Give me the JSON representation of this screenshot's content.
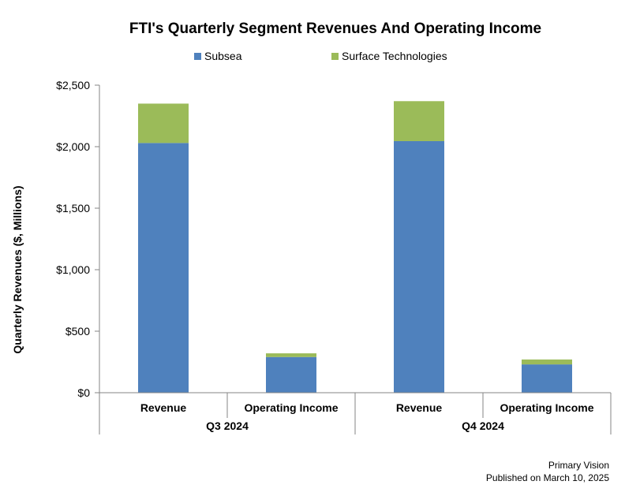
{
  "chart_data": {
    "type": "bar",
    "stacked": true,
    "title": "FTI's Quarterly Segment Revenues And Operating Income",
    "xlabel": "",
    "ylabel": "Quarterly Revenues ($, Millions)",
    "ylim": [
      0,
      2500
    ],
    "yticks": [
      0,
      500,
      1000,
      1500,
      2000,
      2500
    ],
    "ytick_labels": [
      "$0",
      "$500",
      "$1,000",
      "$1,500",
      "$2,000",
      "$2,500"
    ],
    "categories": [
      "Revenue",
      "Operating Income",
      "Revenue",
      "Operating Income"
    ],
    "groups": [
      {
        "label": "Q3 2024",
        "categories": [
          "Revenue",
          "Operating Income"
        ]
      },
      {
        "label": "Q4 2024",
        "categories": [
          "Revenue",
          "Operating Income"
        ]
      }
    ],
    "series": [
      {
        "name": "Subsea",
        "color": "#4F81BD",
        "values": [
          2030,
          290,
          2045,
          230
        ]
      },
      {
        "name": "Surface Technologies",
        "color": "#9BBB59",
        "values": [
          320,
          30,
          325,
          40
        ]
      }
    ],
    "legend_position": "top-center",
    "grid": false
  },
  "footer": {
    "source": "Primary Vision",
    "published": "Published on March 10, 2025"
  }
}
